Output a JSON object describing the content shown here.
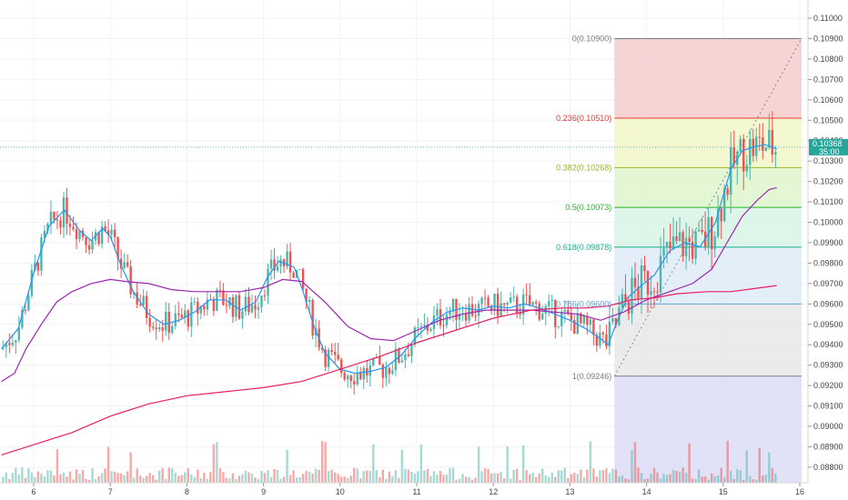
{
  "chart_data": {
    "type": "candlestick",
    "title": "",
    "x_ticks": [
      "6",
      "7",
      "8",
      "9",
      "10",
      "11",
      "12",
      "13",
      "14",
      "15",
      "16"
    ],
    "y_ticks": [
      "0.11000",
      "0.10900",
      "0.10800",
      "0.10700",
      "0.10600",
      "0.10500",
      "0.10400",
      "0.10300",
      "0.10200",
      "0.10100",
      "0.10000",
      "0.09900",
      "0.09800",
      "0.09700",
      "0.09600",
      "0.09500",
      "0.09400",
      "0.09300",
      "0.09200",
      "0.09100",
      "0.09000",
      "0.08900",
      "0.08800"
    ],
    "ylim": [
      0.08764,
      0.11058
    ],
    "xlim": [
      5.58,
      16.35
    ],
    "grid": true,
    "last_price": "0.10368",
    "countdown": "35:00",
    "last_price_color": "#26a69a",
    "up_color": "#4db6ac",
    "down_color": "#ef5350",
    "fibonacci": {
      "x_start": 13.58,
      "x_end": 15.5,
      "levels": [
        {
          "ratio": "0",
          "price": 0.109,
          "label": "0(0.10900)",
          "color": "#787b86",
          "fill": "#f3c6c6"
        },
        {
          "ratio": "0.236",
          "price": 0.1051,
          "label": "0.236(0.10510)",
          "color": "#e53935",
          "fill": "#eff6c2"
        },
        {
          "ratio": "0.382",
          "price": 0.10268,
          "label": "0.382(0.10268)",
          "color": "#9bb327",
          "fill": "#d9f4c6"
        },
        {
          "ratio": "0.5",
          "price": 0.10073,
          "label": "0.5(0.10073)",
          "color": "#27b427",
          "fill": "#d3f2e2"
        },
        {
          "ratio": "0.618",
          "price": 0.09878,
          "label": "0.618(0.09878)",
          "color": "#13b088",
          "fill": "#d9e8f5"
        },
        {
          "ratio": "0.786",
          "price": 0.096,
          "label": "0.786(0.09600)",
          "color": "#5da7d6",
          "fill": "#e4e4e4"
        },
        {
          "ratio": "1",
          "price": 0.09246,
          "label": "1(0.09246)",
          "color": "#787b86",
          "fill": "#dcdcf6"
        }
      ],
      "trend_start": [
        13.58,
        0.09246
      ],
      "trend_end": [
        15.5,
        0.109
      ]
    },
    "series": [
      {
        "kind": "ma",
        "color": "#2196f3",
        "points": [
          [
            5.58,
            0.0938
          ],
          [
            5.8,
            0.0948
          ],
          [
            6.0,
            0.0975
          ],
          [
            6.2,
            0.0998
          ],
          [
            6.4,
            0.1006
          ],
          [
            6.6,
            0.0996
          ],
          [
            6.75,
            0.0991
          ],
          [
            6.9,
            0.0997
          ],
          [
            7.0,
            0.0993
          ],
          [
            7.15,
            0.0978
          ],
          [
            7.3,
            0.0966
          ],
          [
            7.5,
            0.0955
          ],
          [
            7.7,
            0.095
          ],
          [
            7.9,
            0.0952
          ],
          [
            8.1,
            0.0956
          ],
          [
            8.3,
            0.0962
          ],
          [
            8.5,
            0.0962
          ],
          [
            8.7,
            0.0957
          ],
          [
            8.9,
            0.0961
          ],
          [
            9.05,
            0.0973
          ],
          [
            9.2,
            0.0981
          ],
          [
            9.4,
            0.0978
          ],
          [
            9.5,
            0.0968
          ],
          [
            9.65,
            0.095
          ],
          [
            9.8,
            0.0936
          ],
          [
            10.0,
            0.0928
          ],
          [
            10.2,
            0.0926
          ],
          [
            10.4,
            0.0927
          ],
          [
            10.6,
            0.0929
          ],
          [
            10.8,
            0.0935
          ],
          [
            11.0,
            0.0944
          ],
          [
            11.2,
            0.0951
          ],
          [
            11.4,
            0.0956
          ],
          [
            11.6,
            0.0958
          ],
          [
            11.8,
            0.0957
          ],
          [
            12.0,
            0.0959
          ],
          [
            12.2,
            0.0958
          ],
          [
            12.4,
            0.096
          ],
          [
            12.6,
            0.0958
          ],
          [
            12.8,
            0.0955
          ],
          [
            13.0,
            0.0952
          ],
          [
            13.2,
            0.0948
          ],
          [
            13.4,
            0.0943
          ],
          [
            13.5,
            0.094
          ],
          [
            13.6,
            0.095
          ],
          [
            13.75,
            0.0963
          ],
          [
            13.9,
            0.0968
          ],
          [
            14.1,
            0.0974
          ],
          [
            14.3,
            0.0986
          ],
          [
            14.5,
            0.099
          ],
          [
            14.7,
            0.0988
          ],
          [
            14.9,
            0.1
          ],
          [
            15.1,
            0.1026
          ],
          [
            15.25,
            0.1035
          ],
          [
            15.4,
            0.1037
          ],
          [
            15.55,
            0.1038
          ],
          [
            15.7,
            0.1036
          ]
        ]
      },
      {
        "kind": "ma",
        "color": "#9c27b0",
        "points": [
          [
            5.58,
            0.0922
          ],
          [
            5.75,
            0.0926
          ],
          [
            5.9,
            0.0938
          ],
          [
            6.1,
            0.095
          ],
          [
            6.3,
            0.0961
          ],
          [
            6.5,
            0.0966
          ],
          [
            6.75,
            0.097
          ],
          [
            7.0,
            0.0972
          ],
          [
            7.2,
            0.0971
          ],
          [
            7.5,
            0.097
          ],
          [
            7.8,
            0.0967
          ],
          [
            8.1,
            0.0966
          ],
          [
            8.4,
            0.0966
          ],
          [
            8.7,
            0.0966
          ],
          [
            9.0,
            0.0968
          ],
          [
            9.25,
            0.0972
          ],
          [
            9.5,
            0.0971
          ],
          [
            9.8,
            0.0961
          ],
          [
            10.1,
            0.0949
          ],
          [
            10.4,
            0.0943
          ],
          [
            10.7,
            0.0942
          ],
          [
            11.0,
            0.0947
          ],
          [
            11.3,
            0.0952
          ],
          [
            11.6,
            0.0955
          ],
          [
            11.9,
            0.0957
          ],
          [
            12.2,
            0.0957
          ],
          [
            12.5,
            0.0957
          ],
          [
            12.8,
            0.0956
          ],
          [
            13.1,
            0.0955
          ],
          [
            13.4,
            0.0952
          ],
          [
            13.7,
            0.0956
          ],
          [
            14.0,
            0.0962
          ],
          [
            14.3,
            0.0966
          ],
          [
            14.6,
            0.097
          ],
          [
            14.85,
            0.0977
          ],
          [
            15.05,
            0.099
          ],
          [
            15.25,
            0.1003
          ],
          [
            15.45,
            0.1011
          ],
          [
            15.6,
            0.1016
          ],
          [
            15.7,
            0.1017
          ]
        ]
      },
      {
        "kind": "ma",
        "color": "#e91e63",
        "points": [
          [
            5.58,
            0.0886
          ],
          [
            6.0,
            0.0891
          ],
          [
            6.5,
            0.0897
          ],
          [
            7.0,
            0.0905
          ],
          [
            7.5,
            0.0911
          ],
          [
            8.0,
            0.0915
          ],
          [
            8.5,
            0.0917
          ],
          [
            9.0,
            0.0919
          ],
          [
            9.5,
            0.0922
          ],
          [
            10.0,
            0.0928
          ],
          [
            10.5,
            0.0934
          ],
          [
            11.0,
            0.0941
          ],
          [
            11.5,
            0.0947
          ],
          [
            12.0,
            0.0953
          ],
          [
            12.5,
            0.0957
          ],
          [
            12.9,
            0.0958
          ],
          [
            13.2,
            0.0958
          ],
          [
            13.5,
            0.0959
          ],
          [
            13.8,
            0.0962
          ],
          [
            14.1,
            0.0963
          ],
          [
            14.4,
            0.0965
          ],
          [
            14.8,
            0.0966
          ],
          [
            15.1,
            0.0966
          ],
          [
            15.3,
            0.0967
          ],
          [
            15.5,
            0.0968
          ],
          [
            15.7,
            0.0969
          ]
        ]
      }
    ]
  }
}
